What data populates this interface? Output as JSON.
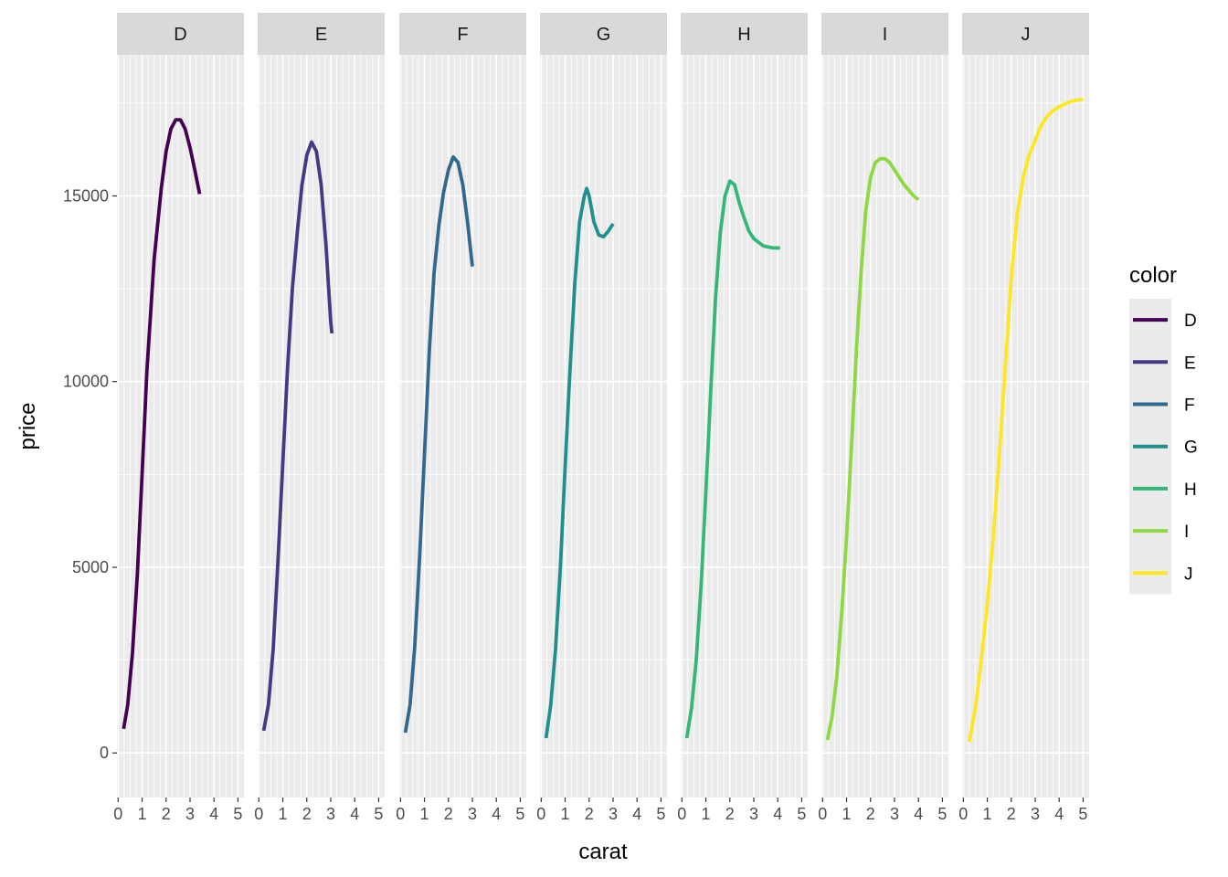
{
  "chart_data": {
    "type": "line",
    "xlabel": "carat",
    "ylabel": "price",
    "xlim": [
      0,
      5
    ],
    "ylim": [
      0,
      17500
    ],
    "x_ticks": [
      0,
      1,
      2,
      3,
      4,
      5
    ],
    "y_ticks": [
      0,
      5000,
      10000,
      15000
    ],
    "y_tick_labels": [
      "0",
      "5000",
      "10000",
      "15000"
    ],
    "grid": true,
    "facets": [
      "D",
      "E",
      "F",
      "G",
      "H",
      "I",
      "J"
    ],
    "legend": {
      "title": "color",
      "placement": "right"
    },
    "series": [
      {
        "name": "D",
        "color": "#440154",
        "x": [
          0.23,
          0.4,
          0.6,
          0.8,
          1.0,
          1.2,
          1.5,
          1.8,
          2.0,
          2.2,
          2.4,
          2.6,
          2.8,
          3.0,
          3.2,
          3.4
        ],
        "y": [
          650,
          1300,
          2700,
          4800,
          7500,
          10300,
          13300,
          15200,
          16200,
          16800,
          17050,
          17050,
          16800,
          16300,
          15700,
          15050
        ]
      },
      {
        "name": "E",
        "color": "#443A83",
        "x": [
          0.2,
          0.4,
          0.6,
          0.8,
          1.0,
          1.2,
          1.4,
          1.6,
          1.8,
          2.0,
          2.2,
          2.4,
          2.6,
          2.8,
          3.0,
          3.05
        ],
        "y": [
          600,
          1300,
          2800,
          5200,
          7800,
          10400,
          12500,
          14000,
          15300,
          16100,
          16450,
          16200,
          15300,
          13700,
          11600,
          11300
        ]
      },
      {
        "name": "F",
        "color": "#31688E",
        "x": [
          0.2,
          0.4,
          0.6,
          0.8,
          1.0,
          1.2,
          1.4,
          1.6,
          1.8,
          2.0,
          2.2,
          2.4,
          2.6,
          2.8,
          3.0
        ],
        "y": [
          550,
          1300,
          2900,
          5300,
          8000,
          10800,
          12900,
          14200,
          15100,
          15700,
          16050,
          15900,
          15300,
          14300,
          13100
        ]
      },
      {
        "name": "G",
        "color": "#21908C",
        "x": [
          0.2,
          0.4,
          0.6,
          0.8,
          1.0,
          1.2,
          1.4,
          1.6,
          1.8,
          1.9,
          2.0,
          2.2,
          2.4,
          2.6,
          2.8,
          3.0
        ],
        "y": [
          400,
          1300,
          2800,
          5000,
          7700,
          10300,
          12600,
          14300,
          15000,
          15200,
          15000,
          14300,
          13950,
          13900,
          14050,
          14250
        ]
      },
      {
        "name": "H",
        "color": "#35B779",
        "x": [
          0.2,
          0.4,
          0.6,
          0.8,
          1.0,
          1.2,
          1.4,
          1.6,
          1.8,
          2.0,
          2.2,
          2.4,
          2.6,
          2.8,
          3.0,
          3.4,
          3.8,
          4.1
        ],
        "y": [
          400,
          1200,
          2500,
          4500,
          7000,
          9700,
          12200,
          14000,
          15000,
          15400,
          15300,
          14800,
          14400,
          14050,
          13850,
          13650,
          13600,
          13600
        ]
      },
      {
        "name": "I",
        "color": "#8FD744",
        "x": [
          0.2,
          0.4,
          0.6,
          0.8,
          1.0,
          1.2,
          1.4,
          1.6,
          1.8,
          2.0,
          2.2,
          2.4,
          2.6,
          2.8,
          3.0,
          3.4,
          3.8,
          4.0
        ],
        "y": [
          350,
          1000,
          2100,
          3800,
          5800,
          8200,
          10700,
          12900,
          14600,
          15500,
          15900,
          16000,
          16000,
          15900,
          15700,
          15300,
          15000,
          14900
        ]
      },
      {
        "name": "J",
        "color": "#FDE725",
        "x": [
          0.25,
          0.5,
          0.75,
          1.0,
          1.25,
          1.5,
          1.75,
          2.0,
          2.25,
          2.5,
          2.75,
          3.0,
          3.25,
          3.5,
          3.75,
          4.0,
          4.5,
          5.0
        ],
        "y": [
          300,
          1200,
          2500,
          4000,
          5800,
          8000,
          10400,
          12800,
          14500,
          15500,
          16100,
          16500,
          16900,
          17150,
          17300,
          17400,
          17550,
          17600
        ]
      }
    ]
  }
}
